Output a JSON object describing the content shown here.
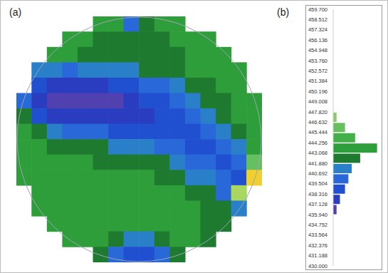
{
  "chart_data": [
    {
      "type": "heatmap",
      "label": "(a)",
      "tick_labels": false,
      "cells": [
        [
          null,
          null,
          null,
          null,
          null,
          443.5,
          443.2,
          440.5,
          442.4,
          443.6,
          443.8,
          null,
          null,
          null,
          null,
          null
        ],
        [
          null,
          null,
          null,
          443.8,
          443.4,
          443.0,
          442.6,
          442.3,
          442.5,
          443.0,
          443.4,
          443.7,
          443.9,
          null,
          null,
          null
        ],
        [
          null,
          null,
          443.6,
          443.2,
          442.8,
          442.4,
          442.0,
          441.9,
          442.0,
          442.3,
          442.8,
          443.3,
          443.7,
          444.0,
          null,
          null
        ],
        [
          null,
          441.5,
          440.8,
          440.6,
          441.0,
          441.4,
          441.7,
          441.8,
          441.9,
          442.2,
          442.6,
          443.1,
          443.5,
          443.8,
          444.0,
          null
        ],
        [
          null,
          439.2,
          438.0,
          437.6,
          437.8,
          438.2,
          438.6,
          439.0,
          439.6,
          440.5,
          441.4,
          442.3,
          443.0,
          443.6,
          443.9,
          null
        ],
        [
          440.5,
          437.5,
          436.6,
          436.4,
          436.5,
          436.7,
          437.0,
          437.6,
          438.4,
          439.2,
          440.2,
          441.2,
          442.3,
          443.0,
          443.5,
          443.6
        ],
        [
          442.0,
          439.5,
          438.2,
          437.6,
          437.3,
          437.2,
          437.3,
          437.6,
          438.0,
          438.6,
          439.3,
          440.2,
          441.3,
          442.4,
          443.2,
          443.4
        ],
        [
          443.2,
          442.0,
          441.0,
          440.3,
          439.9,
          439.7,
          439.5,
          439.3,
          439.0,
          438.9,
          439.0,
          439.5,
          440.2,
          441.4,
          442.6,
          443.2
        ],
        [
          443.6,
          443.3,
          442.9,
          442.5,
          442.2,
          441.9,
          441.6,
          441.3,
          440.8,
          440.2,
          439.7,
          439.3,
          439.3,
          439.9,
          441.5,
          443.5
        ],
        [
          443.8,
          443.6,
          443.4,
          443.3,
          443.2,
          443.0,
          442.8,
          442.6,
          442.3,
          441.9,
          441.2,
          440.4,
          439.6,
          439.2,
          439.6,
          445.5
        ],
        [
          444.0,
          443.8,
          443.7,
          443.6,
          443.6,
          443.5,
          443.4,
          443.3,
          443.1,
          442.9,
          442.5,
          441.8,
          440.8,
          439.6,
          438.8,
          452.5
        ],
        [
          null,
          443.9,
          443.8,
          443.8,
          443.7,
          443.7,
          443.6,
          443.6,
          443.5,
          443.4,
          443.2,
          442.8,
          442.0,
          440.4,
          448.5,
          null
        ],
        [
          null,
          443.6,
          443.8,
          443.9,
          443.8,
          443.7,
          443.6,
          443.6,
          443.5,
          443.5,
          443.4,
          443.2,
          442.8,
          442.2,
          441.8,
          null
        ],
        [
          null,
          null,
          443.4,
          443.7,
          443.8,
          443.7,
          443.5,
          443.4,
          443.4,
          443.5,
          443.5,
          443.3,
          443.0,
          442.6,
          null,
          null
        ],
        [
          null,
          null,
          null,
          443.3,
          443.5,
          443.3,
          442.6,
          441.8,
          441.6,
          442.5,
          443.2,
          443.2,
          443.0,
          null,
          null,
          null
        ],
        [
          null,
          null,
          null,
          null,
          null,
          442.8,
          440.2,
          439.0,
          439.2,
          440.5,
          443.0,
          null,
          null,
          null,
          null,
          null
        ]
      ]
    },
    {
      "type": "bar",
      "label": "(b)",
      "orientation": "horizontal",
      "tick_labels": "y",
      "bins": [
        430,
        431.188,
        432.376,
        433.564,
        434.752,
        435.94,
        437.128,
        438.316,
        439.504,
        440.692,
        441.88,
        443.068,
        444.256,
        445.444,
        446.632,
        447.82,
        449.008,
        450.196,
        451.384,
        452.572,
        453.76,
        454.948,
        456.136,
        457.324,
        458.512,
        459.7
      ],
      "values": [
        0,
        0,
        0,
        0,
        0,
        2,
        4,
        7,
        9,
        11,
        16,
        26,
        13,
        7,
        2,
        0,
        0,
        0,
        0,
        0,
        0,
        0,
        0,
        0,
        0
      ],
      "colors": [
        "#2a0a6e",
        "#30127a",
        "#361a86",
        "#3c2292",
        "#4a2aa0",
        "#5040b0",
        "#2a3cc0",
        "#2050d0",
        "#2868d8",
        "#2a80c8",
        "#1e7a2e",
        "#2e9e3a",
        "#44b04a",
        "#66c060",
        "#88cc66",
        "#a8d860",
        "#c8e050",
        "#e0e040",
        "#f0d030",
        "#f0a828",
        "#f08020",
        "#e85820",
        "#e03020",
        "#c81818",
        "#a01010"
      ],
      "xlim": [
        0,
        27
      ],
      "ylim": [
        430,
        459.7
      ],
      "yticks": [
        {
          "value": 430,
          "label": "430.000"
        },
        {
          "value": 431.188,
          "label": "431.188"
        },
        {
          "value": 432.376,
          "label": "432.376"
        },
        {
          "value": 433.564,
          "label": "433.564"
        },
        {
          "value": 434.752,
          "label": "434.752"
        },
        {
          "value": 435.94,
          "label": "435.940"
        },
        {
          "value": 437.128,
          "label": "437.128"
        },
        {
          "value": 438.316,
          "label": "438.316"
        },
        {
          "value": 439.504,
          "label": "439.504"
        },
        {
          "value": 440.692,
          "label": "440.692"
        },
        {
          "value": 441.88,
          "label": "441.880"
        },
        {
          "value": 443.068,
          "label": "443.068"
        },
        {
          "value": 444.256,
          "label": "444.256"
        },
        {
          "value": 445.444,
          "label": "445.444"
        },
        {
          "value": 446.632,
          "label": "446.632"
        },
        {
          "value": 447.82,
          "label": "447.820"
        },
        {
          "value": 449.008,
          "label": "449.008"
        },
        {
          "value": 450.196,
          "label": "450.196"
        },
        {
          "value": 451.384,
          "label": "451.384"
        },
        {
          "value": 452.572,
          "label": "452.572"
        },
        {
          "value": 453.76,
          "label": "453.760"
        },
        {
          "value": 454.948,
          "label": "454.948"
        },
        {
          "value": 456.136,
          "label": "456.136"
        },
        {
          "value": 457.324,
          "label": "457.324"
        },
        {
          "value": 458.512,
          "label": "458.512"
        },
        {
          "value": 459.7,
          "label": "459.700"
        }
      ]
    }
  ]
}
